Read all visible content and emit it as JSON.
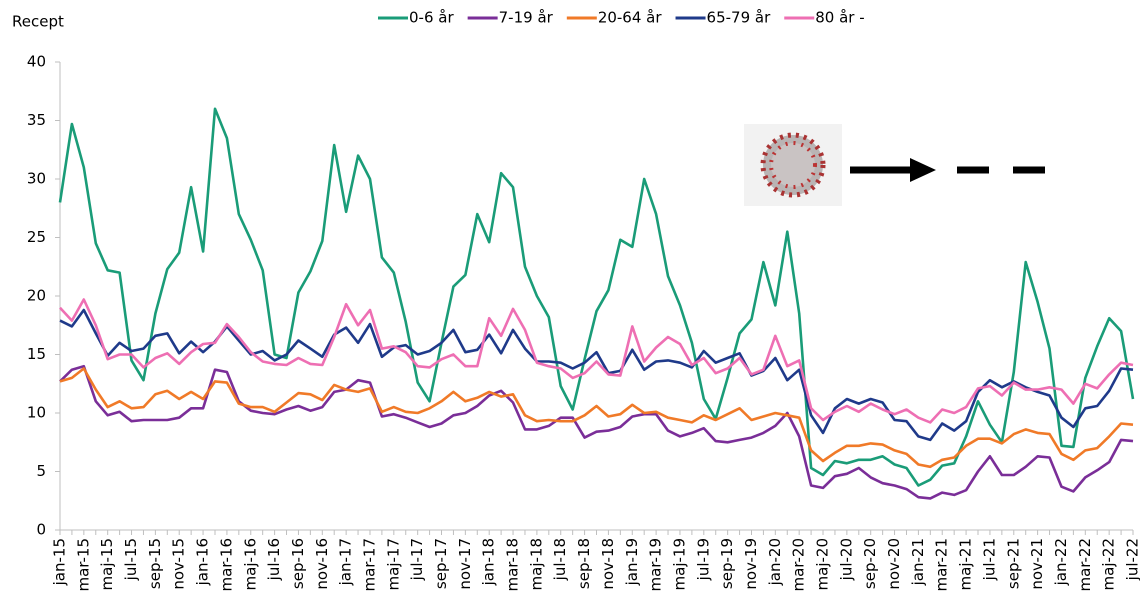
{
  "chart_data": {
    "type": "line",
    "y_label": "Recept",
    "categories": [
      "jan-15",
      null,
      "mar-15",
      null,
      "maj-15",
      null,
      "jul-15",
      null,
      "sep-15",
      null,
      "nov-15",
      null,
      "jan-16",
      null,
      "mar-16",
      null,
      "maj-16",
      null,
      "jul-16",
      null,
      "sep-16",
      null,
      "nov-16",
      null,
      "jan-17",
      null,
      "mar-17",
      null,
      "maj-17",
      null,
      "jul-17",
      null,
      "sep-17",
      null,
      "nov-17",
      null,
      "jan-18",
      null,
      "mar-18",
      null,
      "maj-18",
      null,
      "jul-18",
      null,
      "sep-18",
      null,
      "nov-18",
      null,
      "jan-19",
      null,
      "mar-19",
      null,
      "maj-19",
      null,
      "jul-19",
      null,
      "sep-19",
      null,
      "nov-19",
      null,
      "jan-20",
      null,
      "mar-20",
      null,
      "maj-20",
      null,
      "jul-20",
      null,
      "sep-20",
      null,
      "nov-20",
      null,
      "jan-21",
      null,
      "mar-21",
      null,
      "maj-21",
      null,
      "jul-21",
      null,
      "sep-21",
      null,
      "nov-21",
      null,
      "jan-22",
      null,
      "mar-22",
      null,
      "maj-22",
      null,
      "jul-22"
    ],
    "series": [
      {
        "name": "0-6 år",
        "color": "#1a9c78",
        "values": [
          28,
          34.7,
          31,
          24.5,
          22.2,
          22,
          14.5,
          12.8,
          18.5,
          22.3,
          23.7,
          29.3,
          23.8,
          36,
          33.5,
          27,
          24.8,
          22.2,
          15,
          14.7,
          20.3,
          22.1,
          24.7,
          32.9,
          27.2,
          32,
          30,
          23.3,
          22,
          17.8,
          12.6,
          11,
          16,
          20.8,
          21.8,
          27,
          24.6,
          30.5,
          29.3,
          22.5,
          20,
          18.2,
          12.3,
          10.3,
          14.6,
          18.7,
          20.5,
          24.8,
          24.2,
          30,
          27,
          21.7,
          19.2,
          16,
          11.2,
          9.5,
          13,
          16.8,
          18,
          22.9,
          19.2,
          25.5,
          18.5,
          5.3,
          4.7,
          5.9,
          5.7,
          6,
          6,
          6.3,
          5.6,
          5.3,
          3.8,
          4.3,
          5.5,
          5.7,
          8,
          11,
          9,
          7.5,
          13.5,
          22.9,
          19.5,
          15.5,
          7.2,
          7.1,
          13,
          15.7,
          18.1,
          17,
          11.2
        ]
      },
      {
        "name": "7-19 år",
        "color": "#7a2e98",
        "values": [
          12.7,
          13.7,
          14,
          11,
          9.8,
          10.1,
          9.3,
          9.4,
          9.4,
          9.4,
          9.6,
          10.4,
          10.4,
          13.7,
          13.5,
          11,
          10.2,
          10,
          9.9,
          10.3,
          10.6,
          10.2,
          10.5,
          11.8,
          12,
          12.8,
          12.6,
          9.7,
          9.9,
          9.6,
          9.2,
          8.8,
          9.1,
          9.8,
          10,
          10.6,
          11.5,
          11.9,
          10.9,
          8.6,
          8.6,
          8.9,
          9.6,
          9.6,
          7.9,
          8.4,
          8.5,
          8.8,
          9.7,
          9.9,
          9.9,
          8.5,
          8,
          8.3,
          8.7,
          7.6,
          7.5,
          7.7,
          7.9,
          8.3,
          8.9,
          10,
          8,
          3.8,
          3.6,
          4.6,
          4.8,
          5.3,
          4.5,
          4,
          3.8,
          3.5,
          2.8,
          2.7,
          3.2,
          3,
          3.4,
          5,
          6.3,
          4.7,
          4.7,
          5.4,
          6.3,
          6.2,
          3.7,
          3.3,
          4.5,
          5.1,
          5.8,
          7.7,
          7.6
        ]
      },
      {
        "name": "20-64 år",
        "color": "#f07a28",
        "values": [
          12.7,
          13,
          13.8,
          12,
          10.5,
          11,
          10.4,
          10.5,
          11.6,
          11.9,
          11.2,
          11.8,
          11.2,
          12.7,
          12.6,
          10.8,
          10.5,
          10.5,
          10.1,
          10.9,
          11.7,
          11.6,
          11.1,
          12.4,
          12,
          11.8,
          12.1,
          10.1,
          10.5,
          10.1,
          10,
          10.4,
          11,
          11.8,
          11,
          11.3,
          11.8,
          11.4,
          11.6,
          9.8,
          9.3,
          9.4,
          9.3,
          9.3,
          9.8,
          10.6,
          9.7,
          9.9,
          10.7,
          10,
          10.1,
          9.6,
          9.4,
          9.2,
          9.8,
          9.4,
          9.9,
          10.4,
          9.4,
          9.7,
          10,
          9.8,
          9.6,
          6.8,
          5.9,
          6.6,
          7.2,
          7.2,
          7.4,
          7.3,
          6.8,
          6.5,
          5.6,
          5.4,
          6,
          6.2,
          7.2,
          7.8,
          7.8,
          7.4,
          8.2,
          8.6,
          8.3,
          8.2,
          6.5,
          6,
          6.8,
          7,
          8,
          9.1,
          9
        ]
      },
      {
        "name": "65-79 år",
        "color": "#1f3a8a",
        "values": [
          17.9,
          17.4,
          18.8,
          16.8,
          14.9,
          16,
          15.3,
          15.5,
          16.6,
          16.8,
          15.1,
          16.1,
          15.2,
          16.1,
          17.4,
          16.2,
          15,
          15.3,
          14.5,
          15,
          16.2,
          15.5,
          14.8,
          16.7,
          17.3,
          16,
          17.6,
          14.8,
          15.6,
          15.8,
          15,
          15.3,
          16,
          17.1,
          15.2,
          15.4,
          16.7,
          15.1,
          17.1,
          15.5,
          14.4,
          14.4,
          14.3,
          13.8,
          14.3,
          15.2,
          13.4,
          13.6,
          15.4,
          13.7,
          14.4,
          14.5,
          14.3,
          13.9,
          15.3,
          14.3,
          14.7,
          15.1,
          13.2,
          13.6,
          14.7,
          12.8,
          13.7,
          9.8,
          8.3,
          10.4,
          11.2,
          10.8,
          11.2,
          10.9,
          9.4,
          9.3,
          8,
          7.7,
          9.1,
          8.5,
          9.3,
          11.8,
          12.8,
          12.2,
          12.7,
          12.2,
          11.8,
          11.5,
          9.6,
          8.8,
          10.4,
          10.6,
          11.9,
          13.8,
          13.7
        ]
      },
      {
        "name": "80 år -",
        "color": "#ee6fb3",
        "values": [
          19,
          17.9,
          19.7,
          17.5,
          14.6,
          15,
          15,
          13.9,
          14.7,
          15.1,
          14.2,
          15.2,
          15.9,
          16,
          17.6,
          16.5,
          15.2,
          14.4,
          14.2,
          14.1,
          14.7,
          14.2,
          14.1,
          16.5,
          19.3,
          17.5,
          18.8,
          15.5,
          15.7,
          15.2,
          14,
          13.9,
          14.6,
          15,
          14,
          14,
          18.1,
          16.6,
          18.9,
          17.1,
          14.3,
          14,
          13.8,
          13,
          13.4,
          14.4,
          13.3,
          13.2,
          17.4,
          14.4,
          15.6,
          16.5,
          15.9,
          14.1,
          14.7,
          13.4,
          13.8,
          14.7,
          13.3,
          13.7,
          16.6,
          14,
          14.5,
          10.4,
          9.4,
          10.1,
          10.6,
          10.1,
          10.8,
          10.3,
          9.9,
          10.3,
          9.6,
          9.2,
          10.3,
          10,
          10.5,
          12.1,
          12.3,
          11.5,
          12.6,
          12,
          12,
          12.2,
          12,
          10.8,
          12.5,
          12.1,
          13.3,
          14.3,
          14.1
        ]
      }
    ],
    "ylim": [
      0,
      40
    ],
    "yticks": [
      0,
      5,
      10,
      15,
      20,
      25,
      30,
      35,
      40
    ],
    "grid": false,
    "legend": "top"
  }
}
